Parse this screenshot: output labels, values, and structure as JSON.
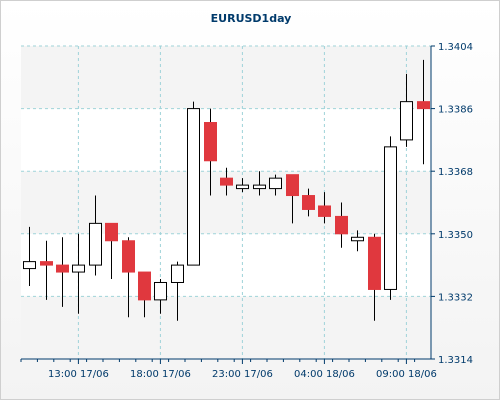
{
  "chart_data": {
    "type": "candlestick",
    "title": "EURUSD1day",
    "xlabel": "",
    "ylabel": "",
    "ylim": [
      1.3314,
      1.3404
    ],
    "y_ticks": [
      "1.3314",
      "1.3332",
      "1.3350",
      "1.3368",
      "1.3386",
      "1.3404"
    ],
    "x_ticks": [
      {
        "index": 3.5,
        "label": "13:00 17/06"
      },
      {
        "index": 8.5,
        "label": "18:00 17/06"
      },
      {
        "index": 13.5,
        "label": "23:00 17/06"
      },
      {
        "index": 18.5,
        "label": "04:00 18/06"
      },
      {
        "index": 23.5,
        "label": "09:00 18/06"
      }
    ],
    "grid": true,
    "colors": {
      "up": "#ffffff",
      "down": "#e0383e",
      "wick": "#000000",
      "grid": "#9fd3d9",
      "axis": "#003a6b"
    },
    "candles": [
      {
        "open": 1.334,
        "high": 1.3352,
        "low": 1.3335,
        "close": 1.3342
      },
      {
        "open": 1.3342,
        "high": 1.3348,
        "low": 1.3331,
        "close": 1.3341
      },
      {
        "open": 1.3341,
        "high": 1.3349,
        "low": 1.3329,
        "close": 1.3339
      },
      {
        "open": 1.3339,
        "high": 1.335,
        "low": 1.3327,
        "close": 1.3341
      },
      {
        "open": 1.3341,
        "high": 1.3361,
        "low": 1.3338,
        "close": 1.3353
      },
      {
        "open": 1.3353,
        "high": 1.3353,
        "low": 1.3337,
        "close": 1.3348
      },
      {
        "open": 1.3348,
        "high": 1.3349,
        "low": 1.3326,
        "close": 1.3339
      },
      {
        "open": 1.3339,
        "high": 1.3339,
        "low": 1.3326,
        "close": 1.3331
      },
      {
        "open": 1.3331,
        "high": 1.3337,
        "low": 1.3327,
        "close": 1.3336
      },
      {
        "open": 1.3336,
        "high": 1.3342,
        "low": 1.3325,
        "close": 1.3341
      },
      {
        "open": 1.3341,
        "high": 1.3388,
        "low": 1.3341,
        "close": 1.3386
      },
      {
        "open": 1.3382,
        "high": 1.3386,
        "low": 1.3361,
        "close": 1.3371
      },
      {
        "open": 1.3366,
        "high": 1.3369,
        "low": 1.3361,
        "close": 1.3364
      },
      {
        "open": 1.3363,
        "high": 1.3366,
        "low": 1.3362,
        "close": 1.3364
      },
      {
        "open": 1.3363,
        "high": 1.3368,
        "low": 1.3361,
        "close": 1.3364
      },
      {
        "open": 1.3363,
        "high": 1.3367,
        "low": 1.3361,
        "close": 1.3366
      },
      {
        "open": 1.3367,
        "high": 1.3367,
        "low": 1.3353,
        "close": 1.3361
      },
      {
        "open": 1.3361,
        "high": 1.3363,
        "low": 1.3355,
        "close": 1.3357
      },
      {
        "open": 1.3358,
        "high": 1.3362,
        "low": 1.3353,
        "close": 1.3355
      },
      {
        "open": 1.3355,
        "high": 1.3359,
        "low": 1.3346,
        "close": 1.335
      },
      {
        "open": 1.3348,
        "high": 1.3351,
        "low": 1.3345,
        "close": 1.3349
      },
      {
        "open": 1.3349,
        "high": 1.335,
        "low": 1.3325,
        "close": 1.3334
      },
      {
        "open": 1.3334,
        "high": 1.3378,
        "low": 1.3331,
        "close": 1.3375
      },
      {
        "open": 1.3377,
        "high": 1.3396,
        "low": 1.3375,
        "close": 1.3388
      },
      {
        "open": 1.3388,
        "high": 1.34,
        "low": 1.337,
        "close": 1.3386
      }
    ]
  }
}
